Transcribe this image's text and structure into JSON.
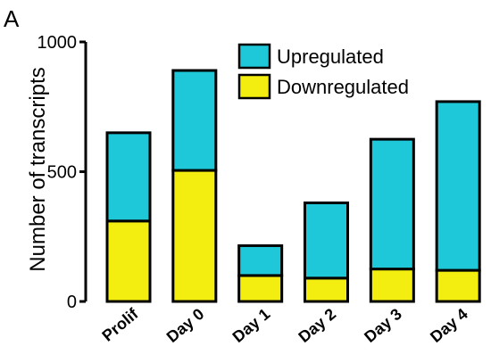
{
  "panel_label": "A",
  "colors": {
    "upregulated": "#1ec8d8",
    "downregulated": "#f4ee10",
    "stroke": "#000000"
  },
  "chart_data": {
    "type": "bar",
    "stacked": true,
    "title": "",
    "xlabel": "",
    "ylabel": "Number of transcripts",
    "ylim": [
      0,
      1000
    ],
    "yticks": [
      0,
      500,
      1000
    ],
    "categories": [
      "Prolif",
      "Day 0",
      "Day 1",
      "Day 2",
      "Day 3",
      "Day 4"
    ],
    "series": [
      {
        "name": "Downregulated",
        "values": [
          310,
          505,
          100,
          90,
          125,
          120
        ]
      },
      {
        "name": "Upregulated",
        "values": [
          340,
          385,
          115,
          290,
          500,
          650
        ]
      }
    ],
    "legend": {
      "placement": "top-right",
      "order": [
        "Upregulated",
        "Downregulated"
      ]
    },
    "grid": false
  }
}
